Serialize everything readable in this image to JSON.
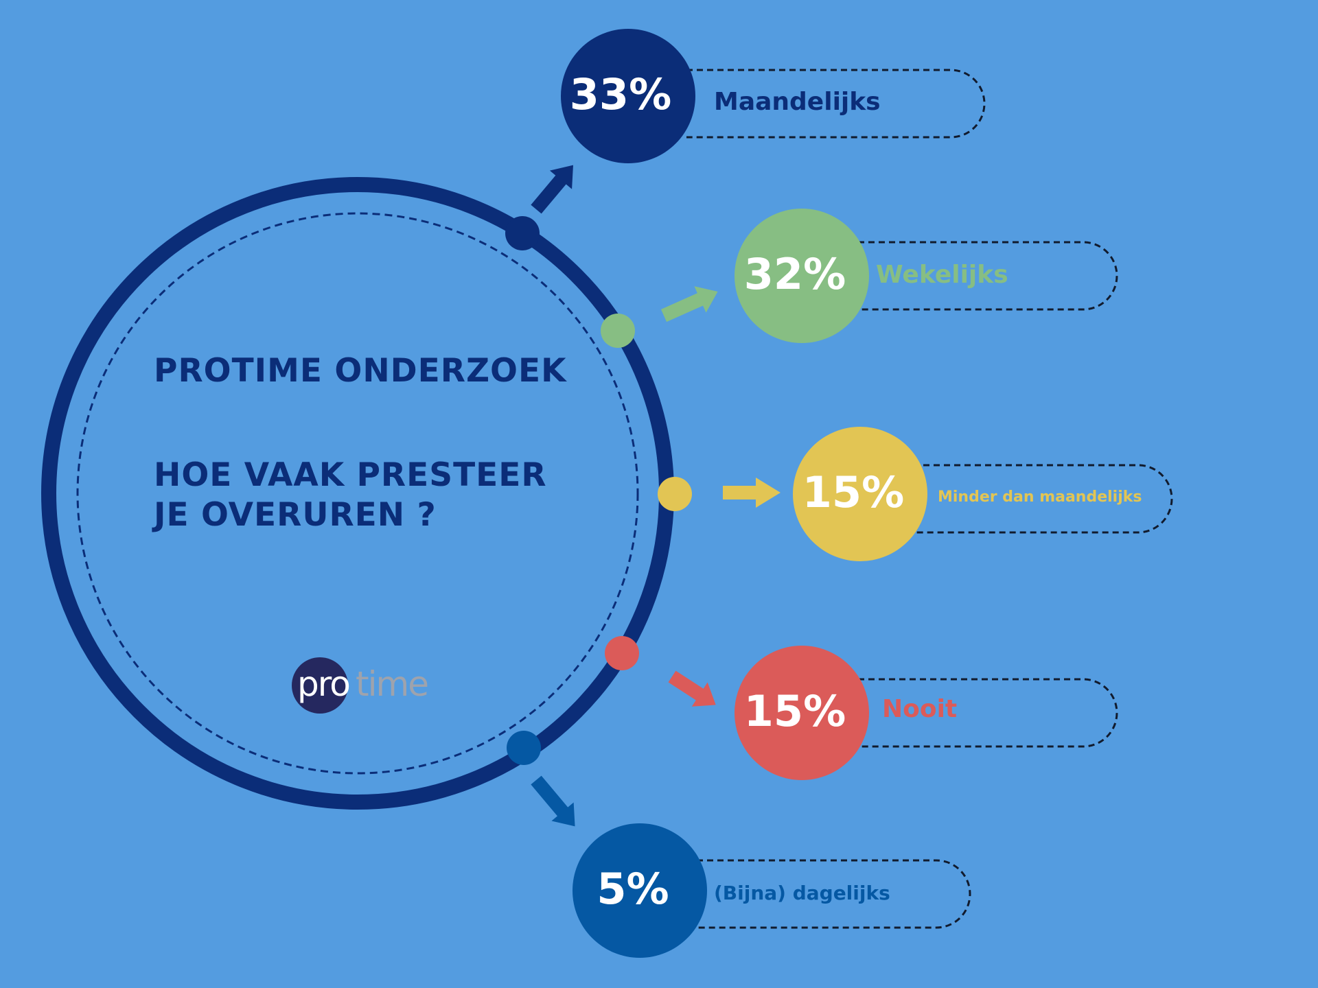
{
  "title": {
    "line1": "PROTIME ONDERZOEK",
    "line2": "HOE VAAK PRESTEER",
    "line3": "JE OVERUREN ?"
  },
  "logo": {
    "part1": "pro",
    "part2": "time"
  },
  "colors": {
    "background": "#549ce0",
    "navy": "#0b2d78",
    "green": "#87be83",
    "yellow": "#e2c554",
    "red": "#db5b59",
    "blue": "#0558a3"
  },
  "results": [
    {
      "value": "33%",
      "label": "Maandelijks",
      "color": "#0b2d78"
    },
    {
      "value": "32%",
      "label": "Wekelijks",
      "color": "#87be83"
    },
    {
      "value": "15%",
      "label": "Minder dan maandelijks",
      "color": "#e2c554"
    },
    {
      "value": "15%",
      "label": "Nooit",
      "color": "#db5b59"
    },
    {
      "value": "5%",
      "label": "(Bijna) dagelijks",
      "color": "#0558a3"
    }
  ]
}
